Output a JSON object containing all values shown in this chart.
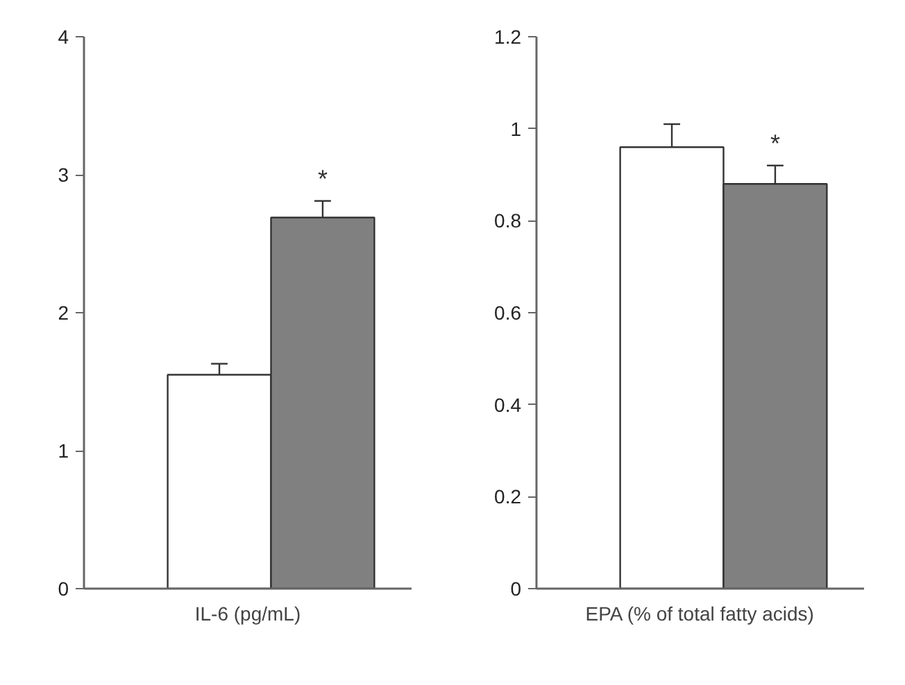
{
  "chart_data": [
    {
      "type": "bar",
      "xlabel": "IL-6 (pg/mL)",
      "categories": [
        null,
        null
      ],
      "values": [
        1.55,
        2.69
      ],
      "colors": [
        "#ffffff",
        "#808080"
      ],
      "errors": [
        [
          1.55,
          1.63
        ],
        [
          2.69,
          2.81
        ]
      ],
      "ylim": [
        0,
        4
      ],
      "yticks": [
        0,
        1,
        2,
        3,
        4
      ],
      "grid": false,
      "annotations": [
        "*"
      ]
    },
    {
      "type": "bar",
      "xlabel": "EPA (% of total fatty acids)",
      "categories": [
        null,
        null
      ],
      "values": [
        0.96,
        0.88
      ],
      "colors": [
        "#ffffff",
        "#808080"
      ],
      "errors": [
        [
          0.96,
          1.01
        ],
        [
          0.88,
          0.92
        ]
      ],
      "ylim": [
        0,
        1.2
      ],
      "yticks": [
        0,
        0.2,
        0.4,
        0.6,
        0.8,
        1,
        1.2
      ],
      "grid": false,
      "annotations": [
        "*"
      ]
    }
  ]
}
